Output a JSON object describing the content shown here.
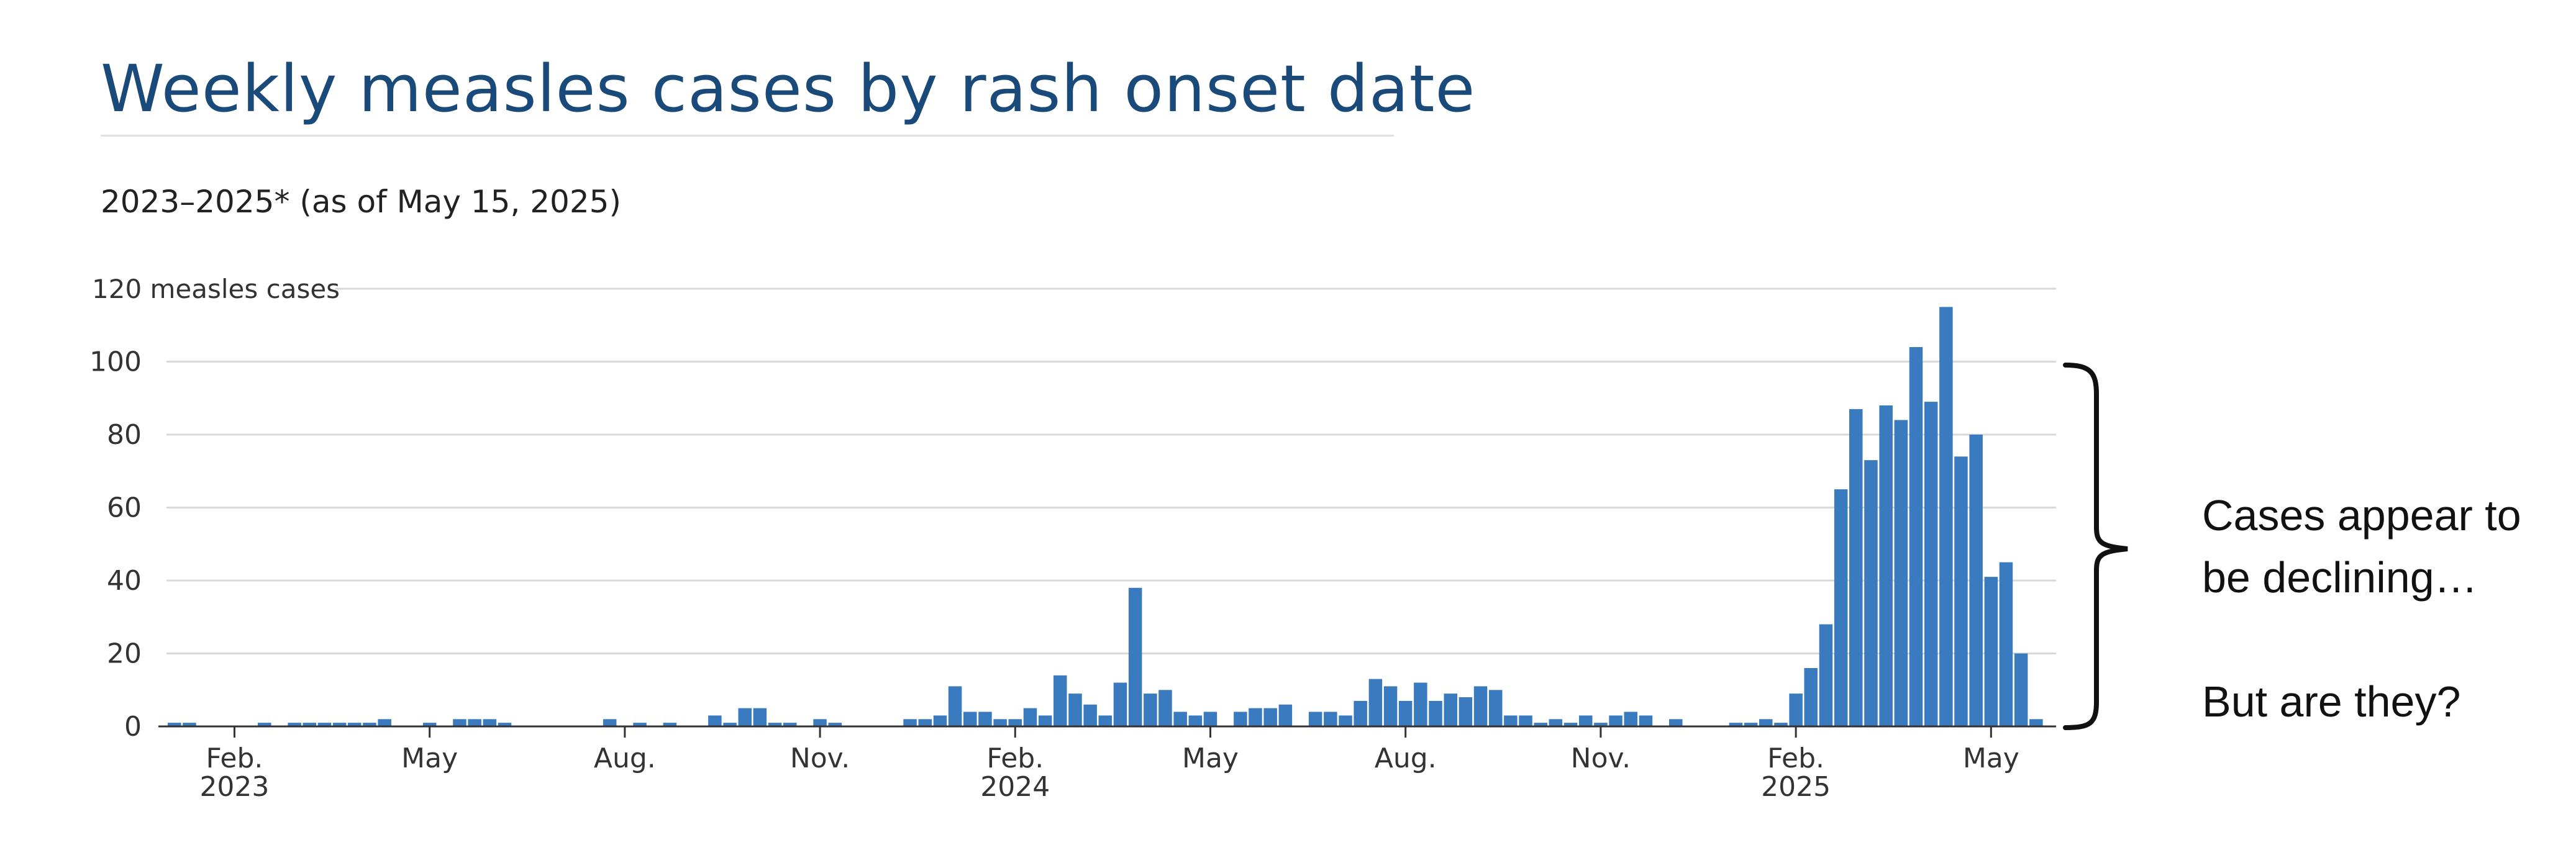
{
  "title": "Weekly measles cases by rash onset date",
  "subtitle": "2023–2025* (as of May 15, 2025)",
  "annotation": {
    "line1": "Cases appear to",
    "line2": "be declining…",
    "line3": "But are they?"
  },
  "colors": {
    "bar": "#3a7abf",
    "title": "#1a4a7a",
    "grid": "#d9d9d9"
  },
  "chart_data": {
    "type": "bar",
    "title": "Weekly measles cases by rash onset date",
    "subtitle": "2023–2025* (as of May 15, 2025)",
    "ylabel": "measles cases",
    "xlabel": "",
    "ylim": [
      0,
      120
    ],
    "yticks": [
      {
        "value": 0,
        "label": "0"
      },
      {
        "value": 20,
        "label": "20"
      },
      {
        "value": 40,
        "label": "40"
      },
      {
        "value": 60,
        "label": "60"
      },
      {
        "value": 80,
        "label": "80"
      },
      {
        "value": 100,
        "label": "100"
      },
      {
        "value": 120,
        "label": "120 measles cases"
      }
    ],
    "xticks": [
      {
        "week": 4,
        "label": "Feb.",
        "sub": "2023"
      },
      {
        "week": 17,
        "label": "May",
        "sub": ""
      },
      {
        "week": 30,
        "label": "Aug.",
        "sub": ""
      },
      {
        "week": 43,
        "label": "Nov.",
        "sub": ""
      },
      {
        "week": 56,
        "label": "Feb.",
        "sub": "2024"
      },
      {
        "week": 69,
        "label": "May",
        "sub": ""
      },
      {
        "week": 82,
        "label": "Aug.",
        "sub": ""
      },
      {
        "week": 95,
        "label": "Nov.",
        "sub": ""
      },
      {
        "week": 108,
        "label": "Feb.",
        "sub": "2025"
      },
      {
        "week": 121,
        "label": "May",
        "sub": ""
      }
    ],
    "grid": true,
    "legend": "none",
    "values": [
      1,
      1,
      0,
      0,
      0,
      0,
      1,
      0,
      1,
      1,
      1,
      1,
      1,
      1,
      2,
      0,
      0,
      1,
      0,
      2,
      2,
      2,
      1,
      0,
      0,
      0,
      0,
      0,
      0,
      2,
      0,
      1,
      0,
      1,
      0,
      0,
      3,
      1,
      5,
      5,
      1,
      1,
      0,
      2,
      1,
      0,
      0,
      0,
      0,
      2,
      2,
      3,
      11,
      4,
      4,
      2,
      2,
      5,
      3,
      14,
      9,
      6,
      3,
      12,
      38,
      9,
      10,
      4,
      3,
      4,
      0,
      4,
      5,
      5,
      6,
      0,
      4,
      4,
      3,
      7,
      13,
      11,
      7,
      12,
      7,
      9,
      8,
      11,
      10,
      3,
      3,
      1,
      2,
      1,
      3,
      1,
      3,
      4,
      3,
      0,
      2,
      0,
      0,
      0,
      1,
      1,
      2,
      1,
      9,
      16,
      28,
      65,
      87,
      73,
      88,
      84,
      104,
      89,
      115,
      74,
      80,
      41,
      45,
      20,
      2
    ]
  }
}
